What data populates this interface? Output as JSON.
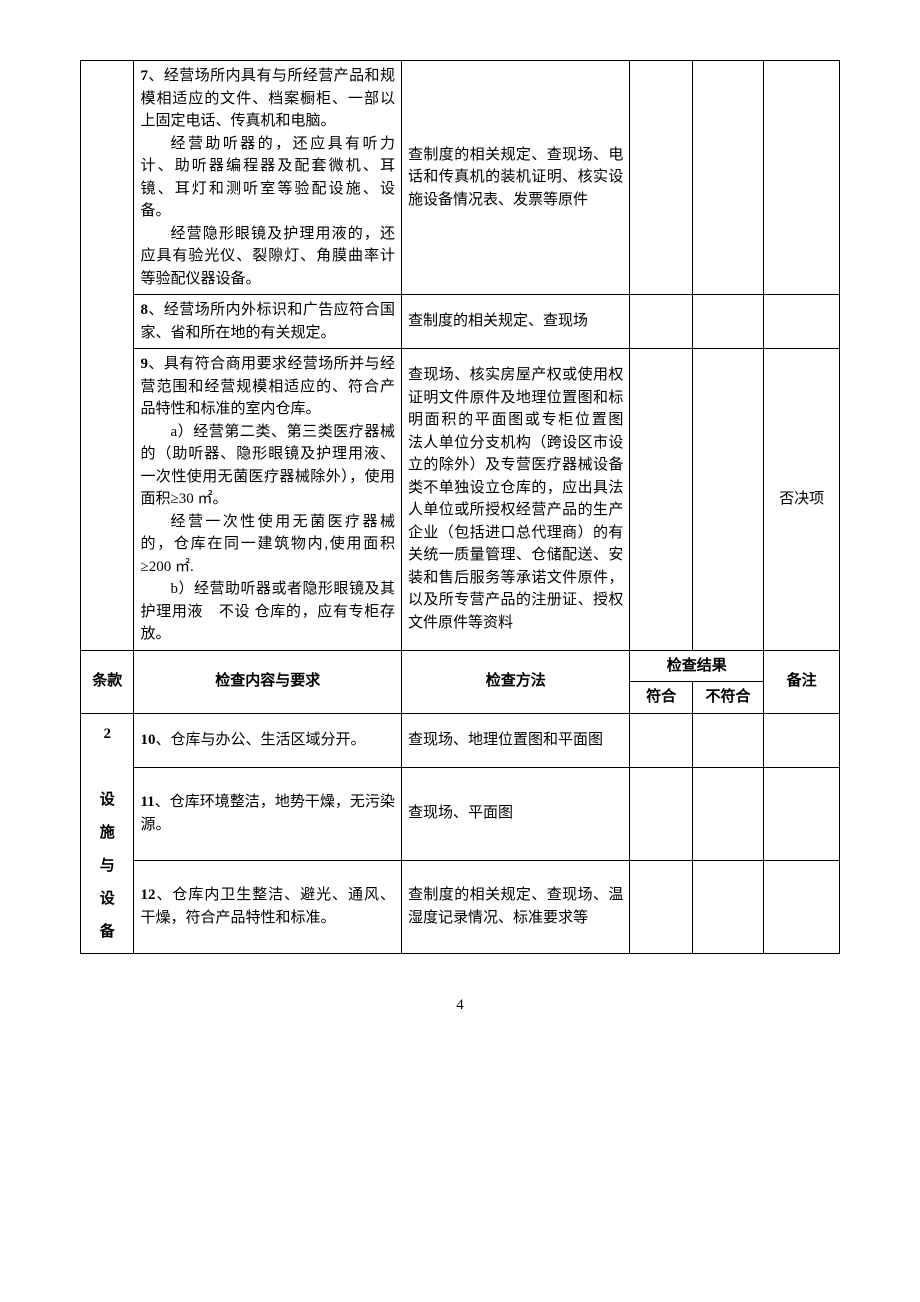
{
  "rows_top": [
    {
      "req_html": "<span class='bold-num'>7</span>、经营场所内具有与所经营产品和规模相适应的文件、档案橱柜、一部以上固定电话、传真机和电脑。<br><span class='indent'>经营助听器的，还应具有听力计、助听器编程器及配套微机、耳镜、耳灯和测听室等验配设施、设备。</span><span class='indent'>经营隐形眼镜及护理用液的，还应具有验光仪、裂隙灯、角膜曲率计等验配仪器设备。</span>",
      "method": "查制度的相关规定、查现场、电话和传真机的装机证明、核实设施设备情况表、发票等原件",
      "note": ""
    },
    {
      "req_html": "<span class='bold-num'>8</span>、经营场所内外标识和广告应符合国家、省和所在地的有关规定。",
      "method": "查制度的相关规定、查现场",
      "note": ""
    },
    {
      "req_html": "<span class='bold-num'>9</span>、具有符合商用要求经营场所并与经营范围和经营规模相适应的、符合产品特性和标准的室内仓库。<br><span class='indent'>a）经营第二类、第三类医疗器械的（助听器、隐形眼镜及护理用液、一次性使用无菌医疗器械除外），使用面积≥30 ㎡。</span><span class='indent'>经营一次性使用无菌医疗器械的，仓库在同一建筑物内,使用面积≥200 ㎡.</span><span class='indent'>b）经营助听器或者隐形眼镜及其护理用液　不设 仓库的，应有专柜存放。</span>",
      "method": "查现场、核实房屋产权或使用权证明文件原件及地理位置图和标明面积的平面图或专柜位置图　　法人单位分支机构（跨设区市设立的除外）及专营医疗器械设备类不单独设立仓库的，应出具法人单位或所授权经营产品的生产企业（包括进口总代理商）的有关统一质量管理、仓储配送、安装和售后服务等承诺文件原件，以及所专营产品的注册证、授权文件原件等资料",
      "note": "否决项"
    }
  ],
  "header": {
    "clause": "条款",
    "req": "检查内容与要求",
    "method": "检查方法",
    "result": "检查结果",
    "pass": "符合",
    "fail": "不符合",
    "note": "备注"
  },
  "section2": {
    "clause_num": "2",
    "clause_label": "设\n施\n与\n设\n备"
  },
  "rows_bottom": [
    {
      "req_html": "<span class='bold-num'>10</span>、仓库与办公、生活区域分开。",
      "method": "查现场、地理位置图和平面图",
      "note": ""
    },
    {
      "req_html": "<span class='bold-num'>11</span>、仓库环境整洁，地势干燥，无污染源。",
      "method": "查现场、平面图",
      "note": ""
    },
    {
      "req_html": "<span class='bold-num'>12</span>、仓库内卫生整洁、避光、通风、干燥，符合产品特性和标准。",
      "method": "查制度的相关规定、查现场、温湿度记录情况、标准要求等",
      "note": ""
    }
  ],
  "page_number": "4"
}
